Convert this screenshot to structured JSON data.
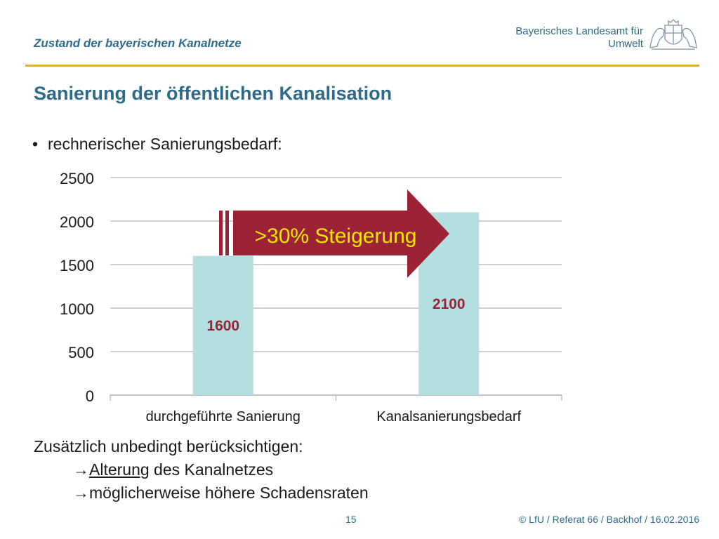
{
  "header": {
    "title": "Zustand der bayerischen Kanalnetze",
    "org_line1": "Bayerisches Landesamt für",
    "org_line2": "Umwelt"
  },
  "slide": {
    "title": "Sanierung der öffentlichen Kanalisation",
    "bullet_symbol": "•",
    "bullet": "rechnerischer Sanierungsbedarf:"
  },
  "notes": {
    "line1": "Zusätzlich unbedingt berücksichtigen:",
    "line2_arrow": "→",
    "line2_underlined": "Alterung",
    "line2_rest": " des Kanalnetzes",
    "line3_arrow": "→",
    "line3": "möglicherweise höhere Schadensraten"
  },
  "footer": {
    "page": "15",
    "credit": "© LfU / Referat 66 / Backhof / 16.02.2016"
  },
  "chart_data": {
    "type": "bar",
    "categories": [
      "durchgeführte Sanierung",
      "Kanalsanierungsbedarf"
    ],
    "values": [
      1600,
      2100
    ],
    "data_labels": [
      "1600",
      "2100"
    ],
    "ylim": [
      0,
      2500
    ],
    "yticks": [
      0,
      500,
      1000,
      1500,
      2000,
      2500
    ],
    "grid": true,
    "annotation": ">30% Steigerung",
    "colors": {
      "bar": "#b4dfe0",
      "label": "#9b2335",
      "arrow": "#9b2335",
      "arrow_text": "#f2e600",
      "grid": "#b3b3b3"
    }
  },
  "colors": {
    "title": "#2e6a8a",
    "accent_rule": "#e0ad3a"
  }
}
